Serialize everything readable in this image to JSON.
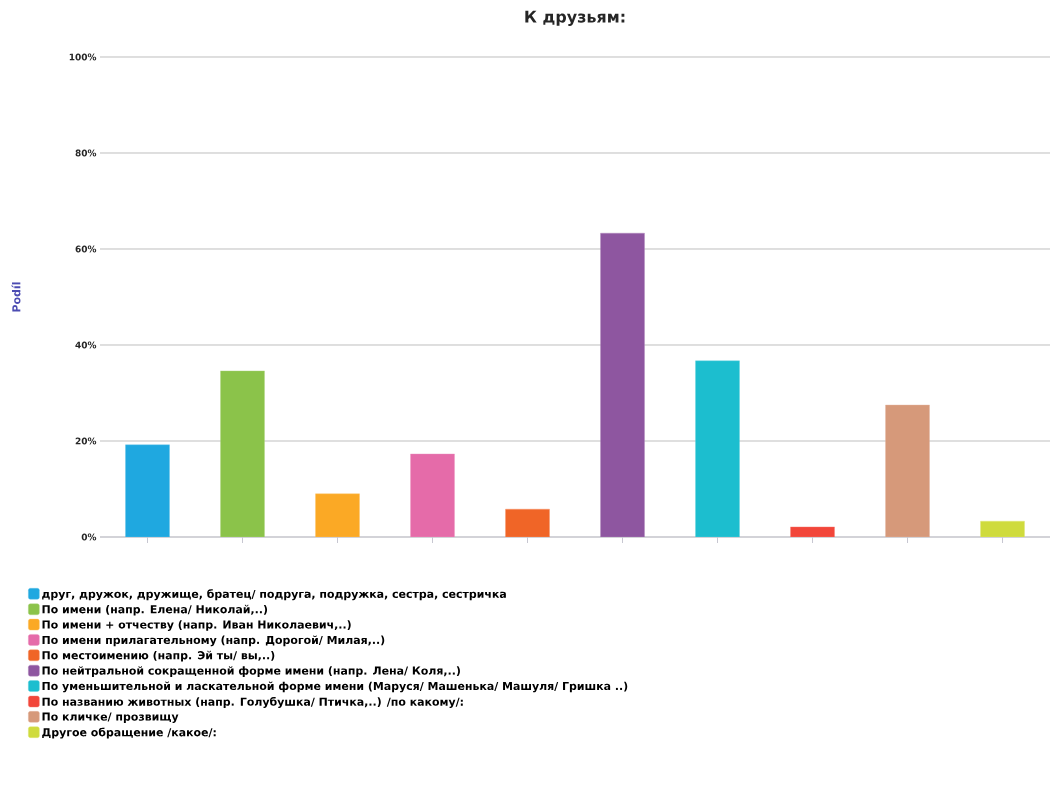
{
  "chart_data": {
    "type": "bar",
    "title": "К друзьям:",
    "ylabel": "Podíl",
    "categories": [
      null,
      null,
      null,
      null,
      null,
      null,
      null,
      null,
      null,
      null
    ],
    "series": [
      {
        "name": "друг, дружок, дружище, братец/ подруга, подружка, сестра, сестричка",
        "color": "#1fa8e0",
        "values": [
          19.2,
          null,
          null,
          null,
          null,
          null,
          null,
          null,
          null,
          null
        ]
      },
      {
        "name": "По имени (напр. Елена/ Николай,..)",
        "color": "#8bc34a",
        "values": [
          null,
          34.6,
          null,
          null,
          null,
          null,
          null,
          null,
          null,
          null
        ]
      },
      {
        "name": "По имени + отчеству (напр. Иван Николаевич,..)",
        "color": "#fba925",
        "values": [
          null,
          null,
          9.0,
          null,
          null,
          null,
          null,
          null,
          null,
          null
        ]
      },
      {
        "name": "По имени прилагательному (напр. Дорогой/ Милая,..)",
        "color": "#e56ba9",
        "values": [
          null,
          null,
          null,
          17.3,
          null,
          null,
          null,
          null,
          null,
          null
        ]
      },
      {
        "name": "По местоимению (напр. Эй ты/ вы,..)",
        "color": "#f06527",
        "values": [
          null,
          null,
          null,
          null,
          5.8,
          null,
          null,
          null,
          null,
          null
        ]
      },
      {
        "name": "По нейтральной сокращенной форме имени (напр. Лена/ Коля,..)",
        "color": "#8e56a0",
        "values": [
          null,
          null,
          null,
          null,
          null,
          63.3,
          null,
          null,
          null,
          null
        ]
      },
      {
        "name": "По уменьшительной и ласкательной форме имени (Маруся/ Машенька/ Машуля/ Гришка ..)",
        "color": "#1cbecf",
        "values": [
          null,
          null,
          null,
          null,
          null,
          null,
          36.7,
          null,
          null,
          null
        ]
      },
      {
        "name": "По названию животных (напр. Голубушка/ Птичка,..) /по какому/:",
        "color": "#f2463a",
        "values": [
          null,
          null,
          null,
          null,
          null,
          null,
          null,
          2.1,
          null,
          null
        ]
      },
      {
        "name": "По кличке/ прозвищу",
        "color": "#d6997a",
        "values": [
          null,
          null,
          null,
          null,
          null,
          null,
          null,
          null,
          27.5,
          null
        ]
      },
      {
        "name": "Другое обращение /какое/:",
        "color": "#cfdb3d",
        "values": [
          null,
          null,
          null,
          null,
          null,
          null,
          null,
          null,
          null,
          3.3
        ]
      }
    ],
    "ylim": [
      0,
      100
    ],
    "yticks": [
      {
        "value": 0,
        "label": "0%"
      },
      {
        "value": 20,
        "label": "20%"
      },
      {
        "value": 40,
        "label": "40%"
      },
      {
        "value": 60,
        "label": "60%"
      },
      {
        "value": 80,
        "label": "80%"
      },
      {
        "value": 100,
        "label": "100%"
      }
    ],
    "grid": "y",
    "legend": "bottom"
  }
}
